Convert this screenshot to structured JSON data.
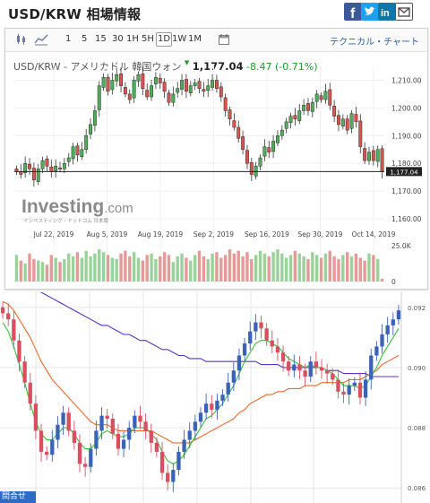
{
  "header": {
    "title": "USD/KRW 相場情報"
  },
  "share": [
    "facebook-icon",
    "twitter-icon",
    "linkedin-icon",
    "mail-icon"
  ],
  "toolbar": {
    "intervals": [
      "1",
      "5",
      "15",
      "30",
      "1H",
      "5H",
      "1D",
      "1W",
      "1M"
    ],
    "selected": "1D",
    "link": "テクニカル・チャート"
  },
  "quote": {
    "pair": "USD/KRW - アメリカドル 韓国ウォン",
    "price": "1,177.04",
    "change": "-8.47",
    "change_pct": "(-0.71%)"
  },
  "brand": {
    "name": "Investing",
    "suffix": ".com",
    "sub": "インベスティング・ドットコム 日本版"
  },
  "chart_data": [
    {
      "type": "candlestick",
      "title": "",
      "x_ticks": [
        "Jul 22, 2019",
        "Aug 5, 2019",
        "Aug 19, 2019",
        "Sep 2, 2019",
        "Sep 16, 2019",
        "Sep 30, 2019",
        "Oct 14, 2019"
      ],
      "y_ticks": [
        "1,210.00",
        "1,200.00",
        "1,190.00",
        "1,180.00",
        "1,170.00",
        "1,160.00"
      ],
      "ylim": [
        1160,
        1215
      ],
      "last_label": "1,177.04",
      "volume_tick": "25.0K",
      "volume_zero": "0",
      "closes": [
        1177,
        1176,
        1180,
        1178,
        1174,
        1178,
        1181,
        1179,
        1177,
        1179,
        1178,
        1180,
        1182,
        1186,
        1183,
        1185,
        1190,
        1194,
        1199,
        1208,
        1211,
        1206,
        1210,
        1212,
        1208,
        1205,
        1203,
        1210,
        1212,
        1207,
        1204,
        1208,
        1211,
        1209,
        1206,
        1202,
        1205,
        1207,
        1210,
        1206,
        1208,
        1209,
        1207,
        1206,
        1208,
        1210,
        1207,
        1204,
        1199,
        1196,
        1193,
        1189,
        1185,
        1180,
        1176,
        1179,
        1182,
        1186,
        1184,
        1188,
        1190,
        1192,
        1195,
        1197,
        1196,
        1199,
        1201,
        1199,
        1202,
        1205,
        1203,
        1206,
        1201,
        1197,
        1194,
        1196,
        1192,
        1198,
        1195,
        1186,
        1181,
        1184,
        1181,
        1185,
        1177
      ],
      "volumes": [
        19,
        15,
        13,
        20,
        16,
        15,
        14,
        12,
        19,
        17,
        14,
        16,
        20,
        18,
        21,
        17,
        22,
        18,
        20,
        23,
        21,
        19,
        17,
        16,
        20,
        22,
        18,
        21,
        17,
        15,
        19,
        20,
        16,
        18,
        21,
        19,
        14,
        18,
        20,
        17,
        15,
        19,
        22,
        18,
        16,
        20,
        21,
        17,
        19,
        23,
        20,
        22,
        18,
        21,
        16,
        19,
        22,
        20,
        18,
        21,
        23,
        20,
        17,
        19,
        22,
        20,
        18,
        16,
        21,
        19,
        17,
        20,
        22,
        18,
        16,
        19,
        21,
        18,
        20,
        17,
        15,
        20,
        19,
        16,
        2
      ]
    },
    {
      "type": "candlestick",
      "title": "",
      "y_ticks": [
        "0.092",
        "0.090",
        "0.088",
        "0.086"
      ],
      "ylim": [
        0.0855,
        0.0925
      ],
      "closes": [
        0.0918,
        0.0916,
        0.0909,
        0.0902,
        0.0895,
        0.0888,
        0.0879,
        0.0872,
        0.0871,
        0.0876,
        0.0881,
        0.0885,
        0.0879,
        0.0875,
        0.0868,
        0.0867,
        0.0873,
        0.0879,
        0.0884,
        0.0883,
        0.0878,
        0.0873,
        0.0876,
        0.088,
        0.0884,
        0.0882,
        0.0879,
        0.0875,
        0.0872,
        0.0865,
        0.0862,
        0.0866,
        0.0872,
        0.0876,
        0.0879,
        0.0882,
        0.0885,
        0.0888,
        0.0886,
        0.0889,
        0.0891,
        0.0895,
        0.0899,
        0.0904,
        0.0908,
        0.0912,
        0.0915,
        0.0913,
        0.0909,
        0.0907,
        0.0905,
        0.0902,
        0.0899,
        0.0901,
        0.0899,
        0.0897,
        0.0902,
        0.09,
        0.0899,
        0.0898,
        0.0896,
        0.0892,
        0.0891,
        0.0894,
        0.0895,
        0.089,
        0.0896,
        0.0904,
        0.0907,
        0.0911,
        0.0914,
        0.0916,
        0.0919
      ],
      "ema_fast": [
        0.0915,
        0.0912,
        0.0907,
        0.0901,
        0.0895,
        0.0888,
        0.0882,
        0.0878,
        0.0876,
        0.0876,
        0.0878,
        0.088,
        0.088,
        0.0878,
        0.0875,
        0.0873,
        0.0873,
        0.0875,
        0.0878,
        0.0879,
        0.0878,
        0.0877,
        0.0877,
        0.0878,
        0.088,
        0.088,
        0.088,
        0.0878,
        0.0876,
        0.0872,
        0.0869,
        0.0868,
        0.0869,
        0.0871,
        0.0874,
        0.0877,
        0.088,
        0.0883,
        0.0884,
        0.0886,
        0.0888,
        0.0891,
        0.0894,
        0.0898,
        0.0902,
        0.0905,
        0.0908,
        0.0909,
        0.0909,
        0.0908,
        0.0907,
        0.0905,
        0.0903,
        0.0902,
        0.0901,
        0.09,
        0.0901,
        0.09,
        0.09,
        0.0899,
        0.0898,
        0.0896,
        0.0894,
        0.0894,
        0.0894,
        0.0893,
        0.0894,
        0.0897,
        0.09,
        0.0904,
        0.0907,
        0.091,
        0.0913
      ],
      "ema_mid": [
        0.0922,
        0.0921,
        0.0919,
        0.0916,
        0.0913,
        0.091,
        0.0906,
        0.0902,
        0.0899,
        0.0896,
        0.0894,
        0.0892,
        0.089,
        0.0888,
        0.0886,
        0.0884,
        0.0882,
        0.0881,
        0.0881,
        0.0881,
        0.088,
        0.0879,
        0.0879,
        0.0879,
        0.0879,
        0.0879,
        0.0879,
        0.0879,
        0.0878,
        0.0877,
        0.0876,
        0.0875,
        0.0875,
        0.0875,
        0.0875,
        0.0876,
        0.0877,
        0.0878,
        0.0879,
        0.088,
        0.0881,
        0.0882,
        0.0883,
        0.0885,
        0.0886,
        0.0888,
        0.0889,
        0.089,
        0.0891,
        0.0891,
        0.0892,
        0.0892,
        0.0893,
        0.0893,
        0.0893,
        0.0894,
        0.0894,
        0.0894,
        0.0895,
        0.0895,
        0.0895,
        0.0895,
        0.0895,
        0.0896,
        0.0896,
        0.0896,
        0.0897,
        0.0898,
        0.0899,
        0.0901,
        0.0902,
        0.0903,
        0.0904
      ],
      "ema_slow": [
        0.0932,
        0.0931,
        0.093,
        0.0929,
        0.0928,
        0.0927,
        0.0926,
        0.0925,
        0.0924,
        0.0923,
        0.0922,
        0.0921,
        0.092,
        0.0919,
        0.0918,
        0.0917,
        0.0916,
        0.0915,
        0.0914,
        0.0914,
        0.0913,
        0.0912,
        0.0911,
        0.0911,
        0.091,
        0.0909,
        0.0909,
        0.0908,
        0.0907,
        0.0906,
        0.0906,
        0.0905,
        0.0904,
        0.0904,
        0.0903,
        0.0903,
        0.0903,
        0.0902,
        0.0902,
        0.0902,
        0.0902,
        0.0902,
        0.0902,
        0.0902,
        0.0902,
        0.0902,
        0.0902,
        0.0901,
        0.0901,
        0.0901,
        0.0901,
        0.09,
        0.09,
        0.09,
        0.09,
        0.09,
        0.09,
        0.09,
        0.09,
        0.0899,
        0.0899,
        0.0899,
        0.0898,
        0.0898,
        0.0898,
        0.0898,
        0.0898,
        0.0897,
        0.0897,
        0.0897,
        0.0897,
        0.0897,
        0.0897
      ]
    }
  ],
  "colors": {
    "up": "#4fae57",
    "down": "#d9534f",
    "vol_up": "#99d39a",
    "vol_down": "#e69a98",
    "bar_up": "#3a63b8",
    "bar_down": "#d94f60",
    "ema_fast": "#35c135",
    "ema_mid": "#f06a2b",
    "ema_slow": "#5b33c7"
  },
  "footer_tab": "問合せ"
}
